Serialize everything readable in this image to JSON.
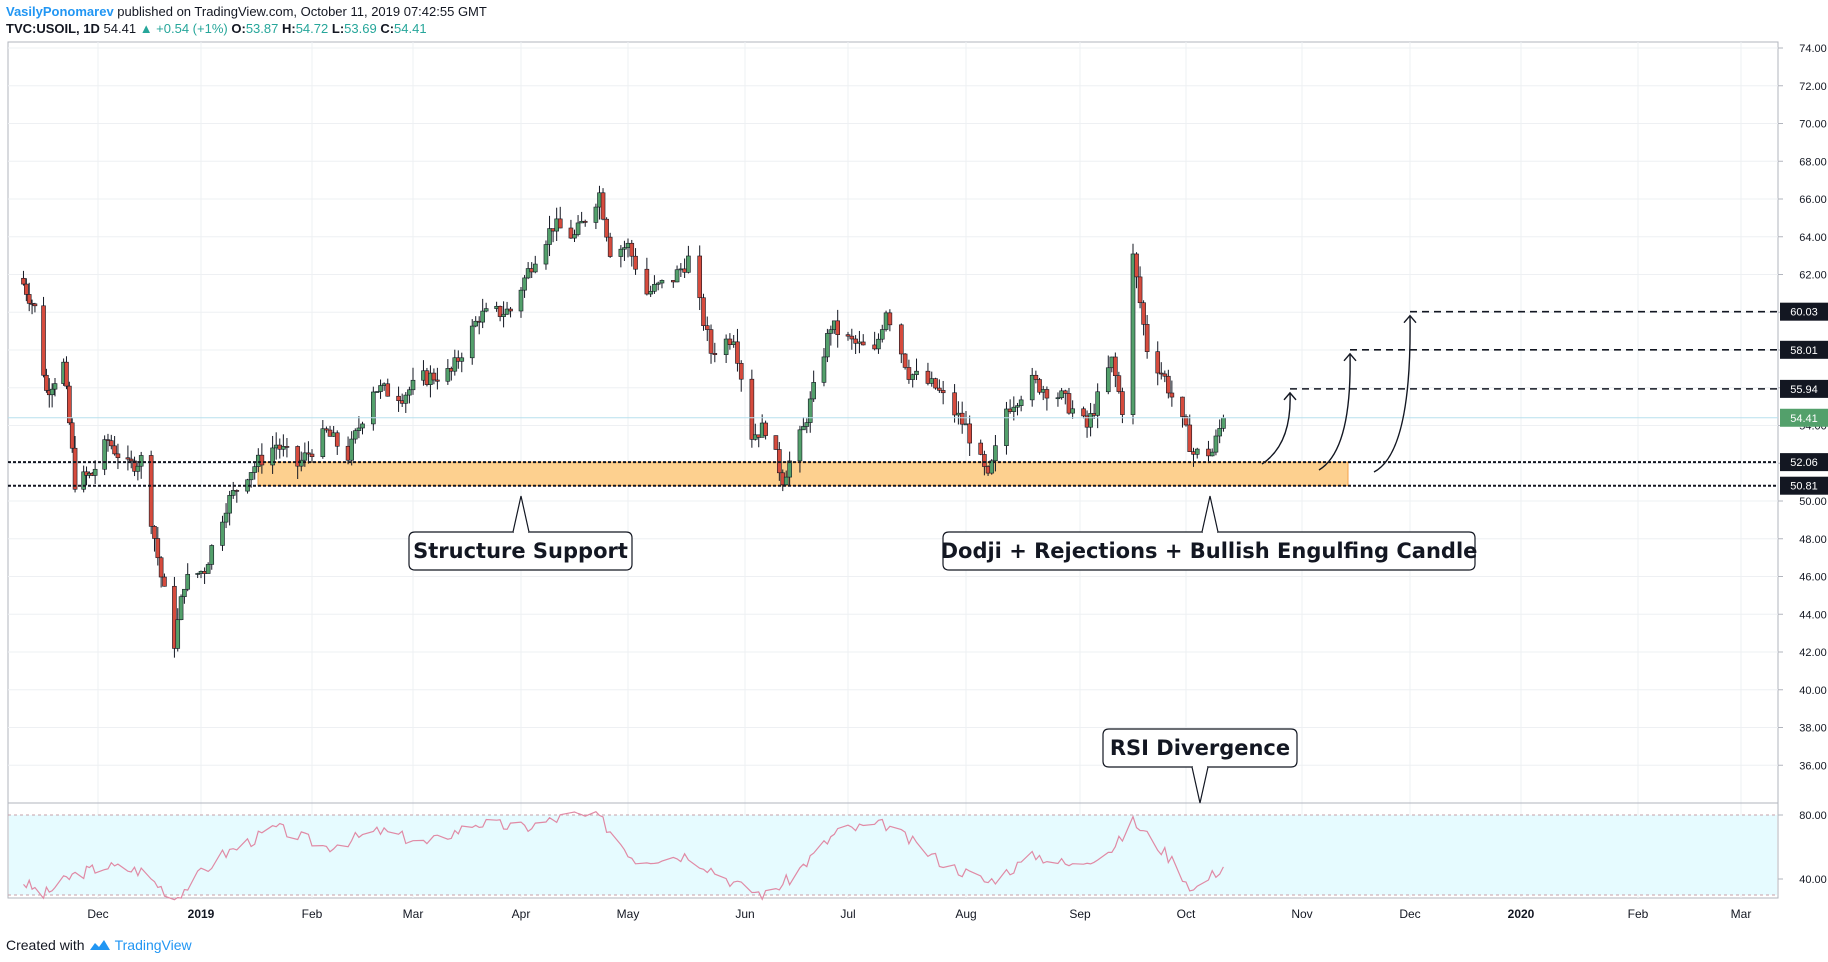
{
  "header": {
    "author": "VasilyPonomarev",
    "published": "published on TradingView.com, October 11, 2019 07:42:55 GMT",
    "symbol": "TVC:USOIL, 1D",
    "last": "54.41",
    "change": "▲ +0.54 (+1%)",
    "o_label": "O:",
    "o_value": "53.87",
    "h_label": "H:",
    "h_value": "54.72",
    "l_label": "L:",
    "l_value": "53.69",
    "c_label": "C:",
    "c_value": "54.41"
  },
  "footer": {
    "created_with": "Created with",
    "brand": "TradingView"
  },
  "colors": {
    "up": "#53a06b",
    "down": "#d64b3d",
    "zone": "#fdd08f",
    "zone_border": "#f5a24a",
    "rsi": "#e08aa5",
    "rsi_band": "#e6fbff",
    "grid": "#eef0f3",
    "badge": "#131722",
    "last_badge": "#53a06b"
  },
  "chart_data": [
    {
      "type": "candlestick",
      "title": "TVC:USOIL, 1D",
      "price_axis": {
        "range": [
          34,
          74
        ],
        "ticks": [
          "74.00",
          "72.00",
          "70.00",
          "68.00",
          "66.00",
          "64.00",
          "62.00",
          "60.00",
          "58.00",
          "56.00",
          "54.00",
          "52.00",
          "50.00",
          "48.00",
          "46.00",
          "44.00",
          "42.00",
          "40.00",
          "38.00",
          "36.00"
        ]
      },
      "time_axis": {
        "ticks": [
          "Dec",
          "2019",
          "Feb",
          "Mar",
          "Apr",
          "May",
          "Jun",
          "Jul",
          "Aug",
          "Sep",
          "Oct",
          "Nov",
          "Dec",
          "2020",
          "Feb",
          "Mar"
        ]
      },
      "close_path": [
        [
          "2018-11-05",
          61.5
        ],
        [
          "2018-11-09",
          60.2
        ],
        [
          "2018-11-13",
          55.8
        ],
        [
          "2018-11-19",
          57.2
        ],
        [
          "2018-11-23",
          51.0
        ],
        [
          "2018-11-29",
          51.4
        ],
        [
          "2018-12-04",
          53.2
        ],
        [
          "2018-12-10",
          51.8
        ],
        [
          "2018-12-14",
          52.2
        ],
        [
          "2018-12-20",
          46.0
        ],
        [
          "2018-12-24",
          42.5
        ],
        [
          "2018-12-27",
          45.7
        ],
        [
          "2019-01-02",
          46.4
        ],
        [
          "2019-01-08",
          49.8
        ],
        [
          "2019-01-14",
          51.5
        ],
        [
          "2019-01-22",
          53.0
        ],
        [
          "2019-01-28",
          51.9
        ],
        [
          "2019-02-05",
          53.6
        ],
        [
          "2019-02-11",
          52.4
        ],
        [
          "2019-02-18",
          56.0
        ],
        [
          "2019-02-26",
          55.6
        ],
        [
          "2019-03-04",
          56.5
        ],
        [
          "2019-03-12",
          56.8
        ],
        [
          "2019-03-20",
          59.8
        ],
        [
          "2019-03-29",
          60.1
        ],
        [
          "2019-04-05",
          63.0
        ],
        [
          "2019-04-10",
          64.6
        ],
        [
          "2019-04-16",
          64.0
        ],
        [
          "2019-04-23",
          66.3
        ],
        [
          "2019-04-26",
          63.3
        ],
        [
          "2019-05-01",
          63.5
        ],
        [
          "2019-05-06",
          61.0
        ],
        [
          "2019-05-13",
          61.8
        ],
        [
          "2019-05-17",
          62.8
        ],
        [
          "2019-05-23",
          57.9
        ],
        [
          "2019-05-29",
          58.8
        ],
        [
          "2019-06-03",
          53.5
        ],
        [
          "2019-06-07",
          53.9
        ],
        [
          "2019-06-12",
          51.2
        ],
        [
          "2019-06-18",
          53.8
        ],
        [
          "2019-06-26",
          59.3
        ],
        [
          "2019-07-01",
          58.5
        ],
        [
          "2019-07-08",
          57.8
        ],
        [
          "2019-07-11",
          60.2
        ],
        [
          "2019-07-17",
          56.8
        ],
        [
          "2019-07-24",
          56.0
        ],
        [
          "2019-08-01",
          53.9
        ],
        [
          "2019-08-07",
          51.1
        ],
        [
          "2019-08-12",
          54.9
        ],
        [
          "2019-08-19",
          56.3
        ],
        [
          "2019-08-27",
          55.5
        ],
        [
          "2019-09-03",
          53.9
        ],
        [
          "2019-09-10",
          57.4
        ],
        [
          "2019-09-13",
          54.9
        ],
        [
          "2019-09-16",
          62.9
        ],
        [
          "2019-09-20",
          58.1
        ],
        [
          "2019-09-25",
          56.5
        ],
        [
          "2019-10-01",
          53.6
        ],
        [
          "2019-10-03",
          52.5
        ],
        [
          "2019-10-08",
          52.6
        ],
        [
          "2019-10-11",
          54.41
        ]
      ],
      "levels": [
        {
          "label": "60.03",
          "value": 60.03,
          "style": "dashed"
        },
        {
          "label": "58.01",
          "value": 58.01,
          "style": "dashed"
        },
        {
          "label": "55.94",
          "value": 55.94,
          "style": "dashed"
        },
        {
          "label": "54.41",
          "value": 54.41,
          "style": "last-price"
        },
        {
          "label": "52.06",
          "value": 52.06,
          "style": "dotted"
        },
        {
          "label": "50.81",
          "value": 50.81,
          "style": "dotted"
        }
      ],
      "support_zone": {
        "top": 52.06,
        "bottom": 50.81
      },
      "annotations": [
        "Structure Support",
        "Dodji + Rejections + Bullish Engulfing Candle",
        "RSI Divergence"
      ]
    },
    {
      "type": "line",
      "title": "RSI",
      "y_axis": {
        "ticks": [
          "80.00",
          "40.00"
        ],
        "bands": [
          80,
          30
        ]
      },
      "rsi_path": [
        [
          "2018-11-05",
          38
        ],
        [
          "2018-11-12",
          30
        ],
        [
          "2018-11-22",
          42
        ],
        [
          "2018-12-03",
          48
        ],
        [
          "2018-12-14",
          45
        ],
        [
          "2018-12-24",
          28
        ],
        [
          "2019-01-07",
          55
        ],
        [
          "2019-01-22",
          72
        ],
        [
          "2019-02-05",
          60
        ],
        [
          "2019-02-20",
          70
        ],
        [
          "2019-03-05",
          62
        ],
        [
          "2019-03-19",
          75
        ],
        [
          "2019-04-02",
          72
        ],
        [
          "2019-04-15",
          80
        ],
        [
          "2019-04-23",
          78
        ],
        [
          "2019-05-03",
          52
        ],
        [
          "2019-05-17",
          55
        ],
        [
          "2019-05-31",
          35
        ],
        [
          "2019-06-07",
          30
        ],
        [
          "2019-06-14",
          40
        ],
        [
          "2019-06-28",
          70
        ],
        [
          "2019-07-11",
          74
        ],
        [
          "2019-07-26",
          50
        ],
        [
          "2019-08-07",
          38
        ],
        [
          "2019-08-20",
          55
        ],
        [
          "2019-08-30",
          48
        ],
        [
          "2019-09-11",
          60
        ],
        [
          "2019-09-16",
          76
        ],
        [
          "2019-09-27",
          52
        ],
        [
          "2019-10-03",
          33
        ],
        [
          "2019-10-11",
          48
        ]
      ]
    }
  ]
}
